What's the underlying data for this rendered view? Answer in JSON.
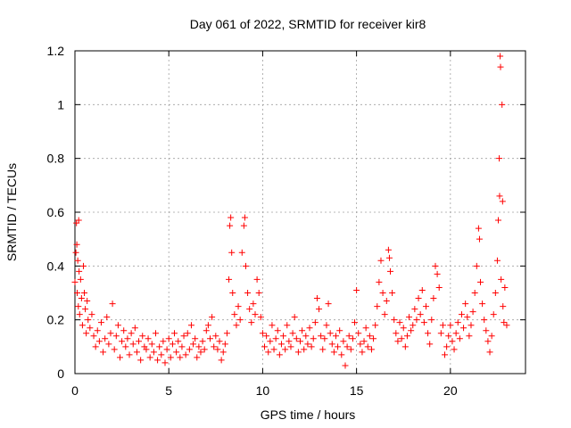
{
  "chart_data": {
    "type": "scatter",
    "title": "Day 061 of 2022, SRMTID for receiver kir8",
    "xlabel": "GPS time / hours",
    "ylabel": "SRMTID / TECUs",
    "xlim": [
      0,
      24
    ],
    "ylim": [
      0,
      1.2
    ],
    "grid": true,
    "marker": "+",
    "colors": {
      "series": "#ff0000",
      "grid": "#a0a0a0",
      "frame": "#000000"
    },
    "x_ticks": [
      0,
      5,
      10,
      15,
      20
    ],
    "x_tick_labels": [
      "0",
      "5",
      "10",
      "15",
      "20"
    ],
    "y_ticks": [
      0,
      0.2,
      0.4,
      0.6,
      0.8,
      1.0,
      1.2
    ],
    "y_tick_labels": [
      "0",
      "0.2",
      "0.4",
      "0.6",
      "0.8",
      "1",
      "1.2"
    ],
    "series": [
      {
        "name": "SRMTID",
        "points": [
          [
            0.0,
            0.34
          ],
          [
            0.05,
            0.45
          ],
          [
            0.08,
            0.56
          ],
          [
            0.1,
            0.48
          ],
          [
            0.12,
            0.3
          ],
          [
            0.15,
            0.42
          ],
          [
            0.18,
            0.25
          ],
          [
            0.2,
            0.57
          ],
          [
            0.22,
            0.38
          ],
          [
            0.25,
            0.22
          ],
          [
            0.3,
            0.35
          ],
          [
            0.35,
            0.28
          ],
          [
            0.4,
            0.18
          ],
          [
            0.45,
            0.4
          ],
          [
            0.5,
            0.3
          ],
          [
            0.55,
            0.24
          ],
          [
            0.6,
            0.15
          ],
          [
            0.65,
            0.27
          ],
          [
            0.7,
            0.2
          ],
          [
            0.8,
            0.17
          ],
          [
            0.9,
            0.22
          ],
          [
            1.0,
            0.14
          ],
          [
            1.1,
            0.1
          ],
          [
            1.2,
            0.16
          ],
          [
            1.3,
            0.12
          ],
          [
            1.4,
            0.19
          ],
          [
            1.5,
            0.08
          ],
          [
            1.6,
            0.13
          ],
          [
            1.7,
            0.21
          ],
          [
            1.8,
            0.11
          ],
          [
            1.9,
            0.15
          ],
          [
            2.0,
            0.26
          ],
          [
            2.1,
            0.09
          ],
          [
            2.2,
            0.14
          ],
          [
            2.3,
            0.18
          ],
          [
            2.4,
            0.06
          ],
          [
            2.5,
            0.12
          ],
          [
            2.6,
            0.16
          ],
          [
            2.7,
            0.1
          ],
          [
            2.8,
            0.13
          ],
          [
            2.9,
            0.07
          ],
          [
            3.0,
            0.15
          ],
          [
            3.1,
            0.11
          ],
          [
            3.2,
            0.17
          ],
          [
            3.3,
            0.08
          ],
          [
            3.4,
            0.12
          ],
          [
            3.5,
            0.05
          ],
          [
            3.6,
            0.14
          ],
          [
            3.7,
            0.1
          ],
          [
            3.8,
            0.09
          ],
          [
            3.9,
            0.13
          ],
          [
            4.0,
            0.06
          ],
          [
            4.1,
            0.11
          ],
          [
            4.2,
            0.08
          ],
          [
            4.3,
            0.15
          ],
          [
            4.4,
            0.05
          ],
          [
            4.5,
            0.1
          ],
          [
            4.6,
            0.07
          ],
          [
            4.7,
            0.12
          ],
          [
            4.8,
            0.04
          ],
          [
            4.9,
            0.09
          ],
          [
            5.0,
            0.13
          ],
          [
            5.1,
            0.06
          ],
          [
            5.2,
            0.11
          ],
          [
            5.3,
            0.15
          ],
          [
            5.4,
            0.08
          ],
          [
            5.5,
            0.12
          ],
          [
            5.6,
            0.06
          ],
          [
            5.7,
            0.1
          ],
          [
            5.8,
            0.14
          ],
          [
            5.9,
            0.07
          ],
          [
            6.0,
            0.15
          ],
          [
            6.1,
            0.09
          ],
          [
            6.2,
            0.18
          ],
          [
            6.3,
            0.11
          ],
          [
            6.4,
            0.13
          ],
          [
            6.5,
            0.06
          ],
          [
            6.6,
            0.1
          ],
          [
            6.7,
            0.08
          ],
          [
            6.8,
            0.12
          ],
          [
            6.9,
            0.09
          ],
          [
            7.0,
            0.16
          ],
          [
            7.1,
            0.18
          ],
          [
            7.2,
            0.13
          ],
          [
            7.3,
            0.21
          ],
          [
            7.4,
            0.1
          ],
          [
            7.5,
            0.14
          ],
          [
            7.6,
            0.09
          ],
          [
            7.7,
            0.12
          ],
          [
            7.8,
            0.05
          ],
          [
            7.9,
            0.08
          ],
          [
            8.0,
            0.11
          ],
          [
            8.1,
            0.15
          ],
          [
            8.2,
            0.35
          ],
          [
            8.25,
            0.55
          ],
          [
            8.3,
            0.58
          ],
          [
            8.35,
            0.45
          ],
          [
            8.4,
            0.3
          ],
          [
            8.5,
            0.22
          ],
          [
            8.6,
            0.18
          ],
          [
            8.7,
            0.25
          ],
          [
            8.8,
            0.2
          ],
          [
            8.9,
            0.45
          ],
          [
            9.0,
            0.55
          ],
          [
            9.05,
            0.58
          ],
          [
            9.1,
            0.4
          ],
          [
            9.2,
            0.3
          ],
          [
            9.3,
            0.24
          ],
          [
            9.4,
            0.19
          ],
          [
            9.5,
            0.26
          ],
          [
            9.6,
            0.22
          ],
          [
            9.7,
            0.35
          ],
          [
            9.8,
            0.3
          ],
          [
            9.9,
            0.21
          ],
          [
            10.0,
            0.15
          ],
          [
            10.1,
            0.1
          ],
          [
            10.2,
            0.14
          ],
          [
            10.3,
            0.08
          ],
          [
            10.4,
            0.12
          ],
          [
            10.5,
            0.18
          ],
          [
            10.6,
            0.09
          ],
          [
            10.7,
            0.13
          ],
          [
            10.8,
            0.16
          ],
          [
            10.9,
            0.07
          ],
          [
            11.0,
            0.11
          ],
          [
            11.1,
            0.14
          ],
          [
            11.2,
            0.09
          ],
          [
            11.3,
            0.18
          ],
          [
            11.4,
            0.12
          ],
          [
            11.5,
            0.1
          ],
          [
            11.6,
            0.15
          ],
          [
            11.7,
            0.21
          ],
          [
            11.8,
            0.13
          ],
          [
            11.9,
            0.08
          ],
          [
            12.0,
            0.12
          ],
          [
            12.1,
            0.16
          ],
          [
            12.2,
            0.09
          ],
          [
            12.3,
            0.14
          ],
          [
            12.4,
            0.11
          ],
          [
            12.5,
            0.17
          ],
          [
            12.6,
            0.1
          ],
          [
            12.7,
            0.13
          ],
          [
            12.8,
            0.19
          ],
          [
            12.9,
            0.28
          ],
          [
            13.0,
            0.24
          ],
          [
            13.1,
            0.14
          ],
          [
            13.2,
            0.09
          ],
          [
            13.3,
            0.13
          ],
          [
            13.4,
            0.18
          ],
          [
            13.5,
            0.26
          ],
          [
            13.6,
            0.15
          ],
          [
            13.7,
            0.11
          ],
          [
            13.8,
            0.08
          ],
          [
            13.9,
            0.14
          ],
          [
            14.0,
            0.1
          ],
          [
            14.1,
            0.16
          ],
          [
            14.2,
            0.07
          ],
          [
            14.3,
            0.12
          ],
          [
            14.4,
            0.03
          ],
          [
            14.5,
            0.1
          ],
          [
            14.6,
            0.14
          ],
          [
            14.7,
            0.09
          ],
          [
            14.8,
            0.13
          ],
          [
            14.9,
            0.19
          ],
          [
            15.0,
            0.31
          ],
          [
            15.1,
            0.15
          ],
          [
            15.2,
            0.11
          ],
          [
            15.3,
            0.08
          ],
          [
            15.4,
            0.12
          ],
          [
            15.5,
            0.17
          ],
          [
            15.6,
            0.1
          ],
          [
            15.7,
            0.14
          ],
          [
            15.8,
            0.09
          ],
          [
            15.9,
            0.13
          ],
          [
            16.0,
            0.18
          ],
          [
            16.1,
            0.25
          ],
          [
            16.2,
            0.34
          ],
          [
            16.3,
            0.42
          ],
          [
            16.4,
            0.3
          ],
          [
            16.5,
            0.22
          ],
          [
            16.6,
            0.27
          ],
          [
            16.7,
            0.46
          ],
          [
            16.75,
            0.43
          ],
          [
            16.8,
            0.38
          ],
          [
            16.9,
            0.3
          ],
          [
            17.0,
            0.2
          ],
          [
            17.1,
            0.15
          ],
          [
            17.2,
            0.12
          ],
          [
            17.3,
            0.19
          ],
          [
            17.4,
            0.13
          ],
          [
            17.5,
            0.17
          ],
          [
            17.6,
            0.1
          ],
          [
            17.7,
            0.14
          ],
          [
            17.8,
            0.21
          ],
          [
            17.9,
            0.16
          ],
          [
            18.0,
            0.18
          ],
          [
            18.1,
            0.24
          ],
          [
            18.2,
            0.2
          ],
          [
            18.3,
            0.28
          ],
          [
            18.4,
            0.22
          ],
          [
            18.5,
            0.31
          ],
          [
            18.6,
            0.19
          ],
          [
            18.7,
            0.25
          ],
          [
            18.8,
            0.15
          ],
          [
            18.9,
            0.11
          ],
          [
            19.0,
            0.2
          ],
          [
            19.1,
            0.28
          ],
          [
            19.2,
            0.4
          ],
          [
            19.3,
            0.37
          ],
          [
            19.4,
            0.32
          ],
          [
            19.5,
            0.15
          ],
          [
            19.6,
            0.18
          ],
          [
            19.7,
            0.07
          ],
          [
            19.8,
            0.1
          ],
          [
            19.9,
            0.14
          ],
          [
            20.0,
            0.18
          ],
          [
            20.1,
            0.12
          ],
          [
            20.2,
            0.09
          ],
          [
            20.3,
            0.15
          ],
          [
            20.4,
            0.19
          ],
          [
            20.5,
            0.13
          ],
          [
            20.6,
            0.22
          ],
          [
            20.7,
            0.17
          ],
          [
            20.8,
            0.26
          ],
          [
            20.9,
            0.21
          ],
          [
            21.0,
            0.14
          ],
          [
            21.1,
            0.18
          ],
          [
            21.2,
            0.23
          ],
          [
            21.3,
            0.3
          ],
          [
            21.4,
            0.4
          ],
          [
            21.5,
            0.54
          ],
          [
            21.55,
            0.5
          ],
          [
            21.6,
            0.34
          ],
          [
            21.7,
            0.26
          ],
          [
            21.8,
            0.2
          ],
          [
            21.9,
            0.16
          ],
          [
            22.0,
            0.12
          ],
          [
            22.1,
            0.08
          ],
          [
            22.2,
            0.14
          ],
          [
            22.3,
            0.22
          ],
          [
            22.4,
            0.3
          ],
          [
            22.5,
            0.42
          ],
          [
            22.55,
            0.57
          ],
          [
            22.6,
            0.8
          ],
          [
            22.62,
            0.66
          ],
          [
            22.65,
            1.18
          ],
          [
            22.67,
            1.14
          ],
          [
            22.7,
            0.35
          ],
          [
            22.75,
            1.0
          ],
          [
            22.78,
            0.64
          ],
          [
            22.8,
            0.25
          ],
          [
            22.85,
            0.19
          ],
          [
            22.9,
            0.32
          ],
          [
            23.0,
            0.18
          ]
        ]
      }
    ]
  }
}
